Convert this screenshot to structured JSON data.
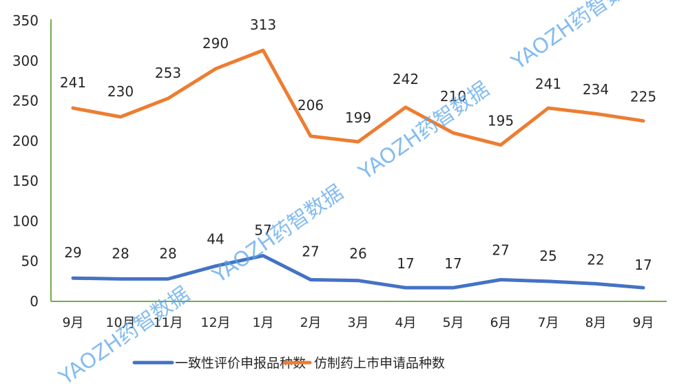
{
  "chart_data": {
    "type": "line",
    "title": "",
    "xlabel": "",
    "ylabel": "",
    "categories": [
      "9月",
      "10月",
      "11月",
      "12月",
      "1月",
      "2月",
      "3月",
      "4月",
      "5月",
      "6月",
      "7月",
      "8月",
      "9月"
    ],
    "series": [
      {
        "name": "一致性评价申报品种数",
        "color": "#4472c4",
        "values": [
          29,
          28,
          28,
          44,
          57,
          27,
          26,
          17,
          17,
          27,
          25,
          22,
          17
        ]
      },
      {
        "name": "仿制药上市申请品种数",
        "color": "#ed7d31",
        "values": [
          241,
          230,
          253,
          290,
          313,
          206,
          199,
          242,
          210,
          195,
          241,
          234,
          225
        ]
      }
    ],
    "ylim": [
      0,
      350
    ],
    "yticks": [
      0,
      50,
      100,
      150,
      200,
      250,
      300,
      350
    ],
    "grid": false,
    "axis_color": "#70ad47",
    "legend_position": "bottom",
    "data_labels": true
  },
  "watermark": {
    "text": "YAOZH药智数据",
    "color": "#5aa6ea"
  }
}
